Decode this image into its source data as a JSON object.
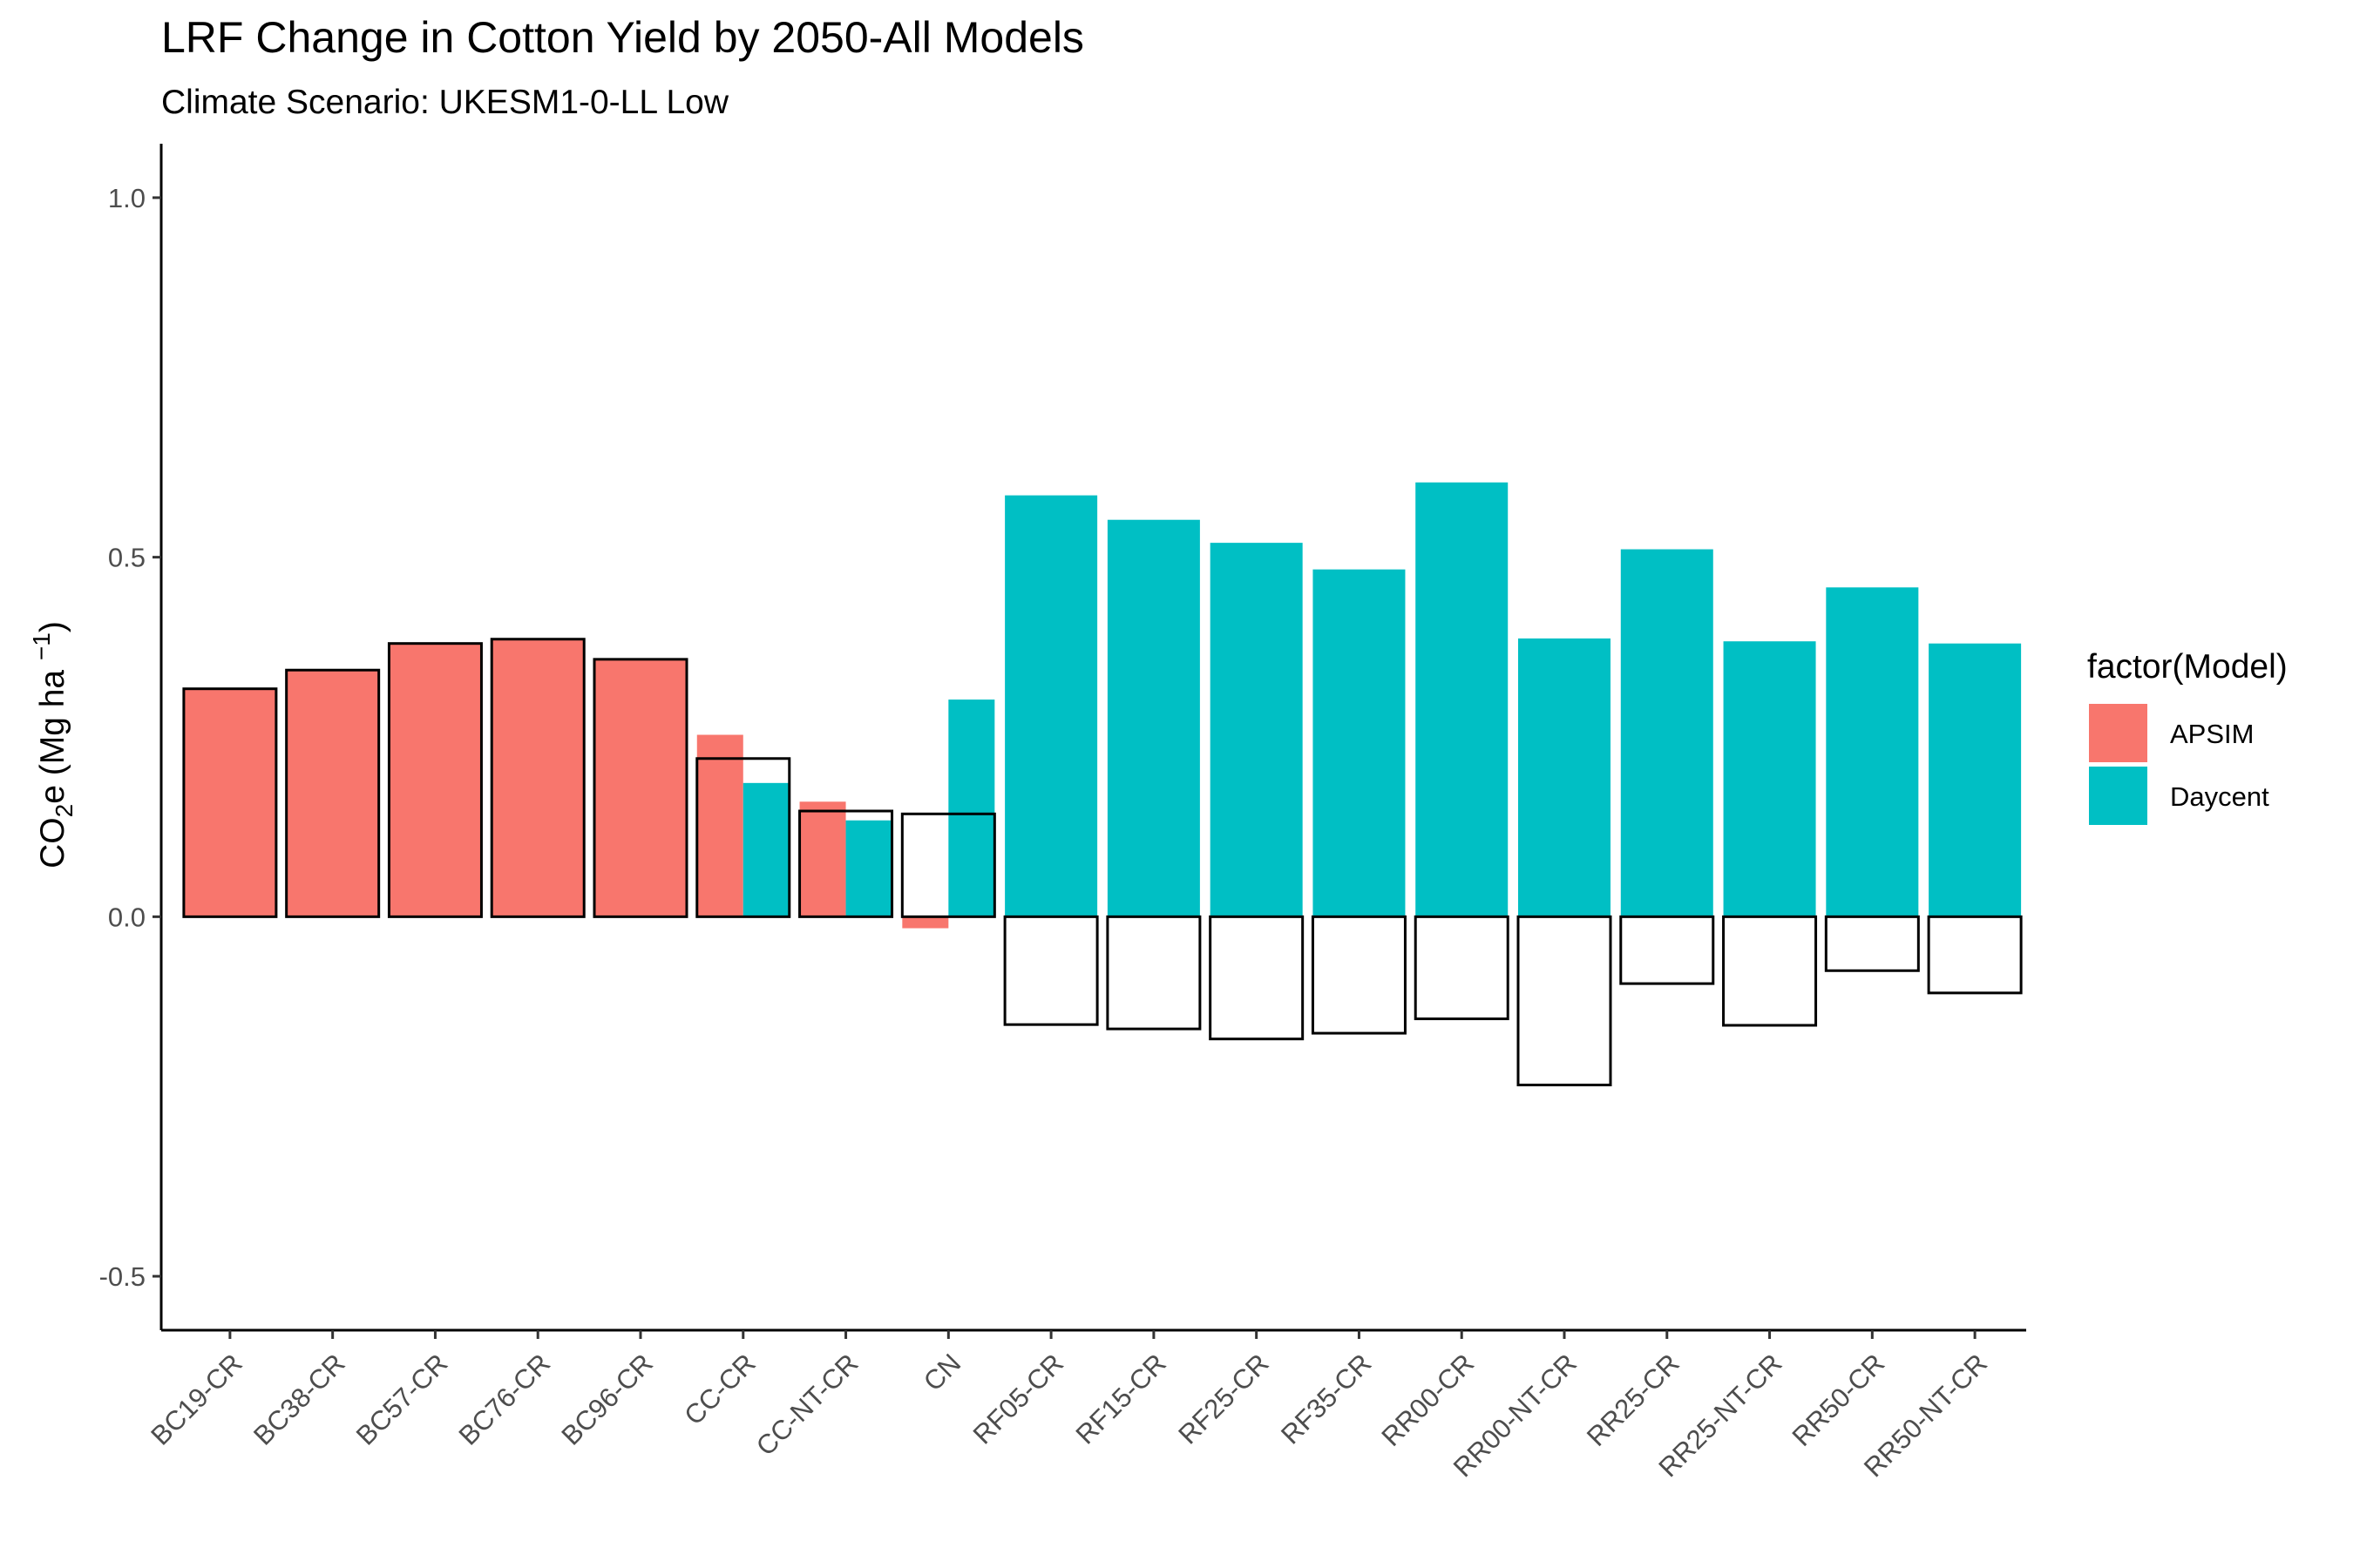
{
  "chart_data": {
    "type": "bar",
    "title": "LRF Change in Cotton Yield by 2050-All Models",
    "subtitle": "Climate Scenario: UKESM1-0-LL Low",
    "ylabel": {
      "base": "CO",
      "sub": "2",
      "mid": "e (Mg ha ",
      "sup": "−1",
      "end": ")"
    },
    "xlabel": "",
    "ylim": [
      -0.575,
      1.075
    ],
    "yticks": [
      {
        "value": -0.5,
        "label": "-0.5"
      },
      {
        "value": 0.0,
        "label": "0.0"
      },
      {
        "value": 0.5,
        "label": "0.5"
      },
      {
        "value": 1.0,
        "label": "1.0"
      }
    ],
    "categories": [
      "BC19-CR",
      "BC38-CR",
      "BC57-CR",
      "BC76-CR",
      "BC96-CR",
      "CC-CR",
      "CC-NT-CR",
      "CN",
      "RF05-CR",
      "RF15-CR",
      "RF25-CR",
      "RF35-CR",
      "RR00-CR",
      "RR00-NT-CR",
      "RR25-CR",
      "RR25-NT-CR",
      "RR50-CR",
      "RR50-NT-CR"
    ],
    "series": [
      {
        "name": "APSIM",
        "color": "#F8766D",
        "values": [
          0.317,
          0.343,
          0.38,
          0.386,
          0.358,
          0.253,
          0.16,
          -0.016,
          null,
          null,
          null,
          null,
          null,
          null,
          null,
          null,
          null,
          null
        ]
      },
      {
        "name": "Daycent",
        "color": "#00BFC4",
        "values": [
          null,
          null,
          null,
          null,
          null,
          0.186,
          0.134,
          0.302,
          0.586,
          0.552,
          0.52,
          0.483,
          0.604,
          0.387,
          0.511,
          0.383,
          0.458,
          0.38
        ]
      }
    ],
    "outline_bars": {
      "stroke": "#000000",
      "values": [
        0.317,
        0.343,
        0.38,
        0.386,
        0.358,
        0.22,
        0.147,
        0.143,
        -0.15,
        -0.156,
        -0.17,
        -0.162,
        -0.142,
        -0.234,
        -0.093,
        -0.151,
        -0.075,
        -0.106
      ]
    },
    "legend": {
      "title": "factor(Model)",
      "position": "right",
      "items": [
        "APSIM",
        "Daycent"
      ]
    },
    "grid": false
  }
}
